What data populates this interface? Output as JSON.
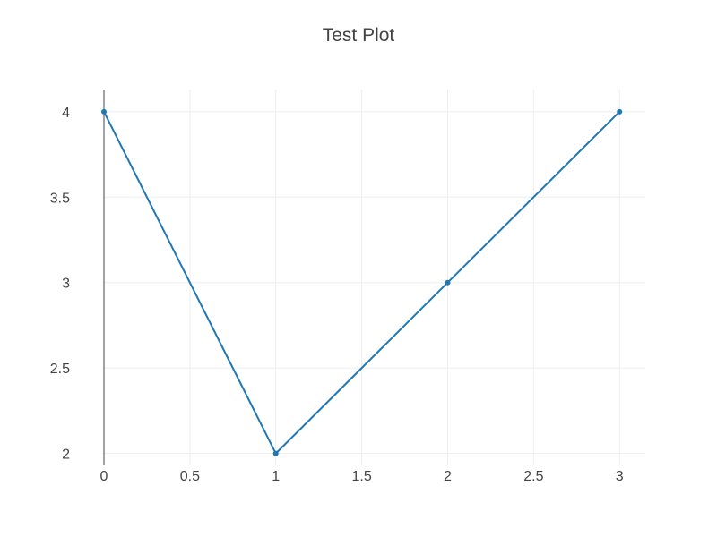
{
  "chart_data": {
    "type": "line",
    "title": "Test Plot",
    "xlabel": "",
    "ylabel": "",
    "x": [
      0,
      1,
      2,
      3
    ],
    "series": [
      {
        "values": [
          4,
          2,
          3,
          4
        ],
        "color": "#1f77b4",
        "markers": true
      }
    ],
    "xlim": [
      0,
      3.15
    ],
    "ylim": [
      1.93,
      4.13
    ],
    "x_ticks": [
      0,
      0.5,
      1,
      1.5,
      2,
      2.5,
      3
    ],
    "x_tick_labels": [
      "0",
      "0.5",
      "1",
      "1.5",
      "2",
      "2.5",
      "3"
    ],
    "y_ticks": [
      2,
      2.5,
      3,
      3.5,
      4
    ],
    "y_tick_labels": [
      "2",
      "2.5",
      "3",
      "3.5",
      "4"
    ],
    "grid": true,
    "legend": "none",
    "colors": {
      "grid": "#eeeeee",
      "axis_line": "#444444",
      "text": "#444444"
    }
  }
}
